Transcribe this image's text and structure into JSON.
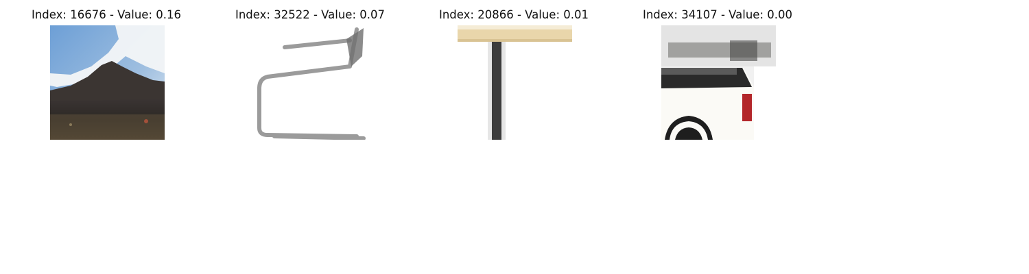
{
  "panels": [
    {
      "index": "16676",
      "value": "0.16",
      "title": "Index: 16676 - Value: 0.16",
      "image": "mountain-landscape-thumbnail"
    },
    {
      "index": "32522",
      "value": "0.07",
      "title": "Index: 32522 - Value: 0.07",
      "image": "cantilever-chair-thumbnail"
    },
    {
      "index": "20866",
      "value": "0.01",
      "title": "Index: 20866 - Value: 0.01",
      "image": "table-thumbnail"
    },
    {
      "index": "34107",
      "value": "0.00",
      "title": "Index: 34107 - Value: 0.00",
      "image": "white-pickup-truck-thumbnail"
    }
  ]
}
